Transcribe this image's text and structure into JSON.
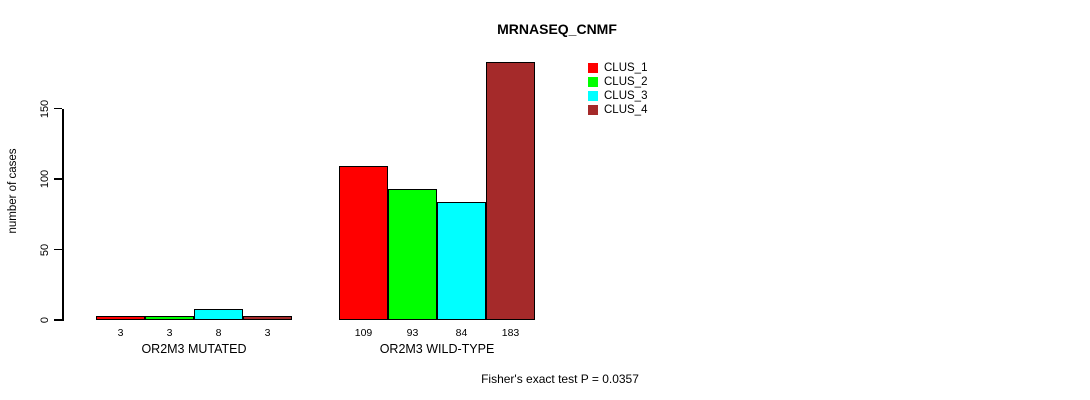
{
  "title": "MRNASEQ_CNMF",
  "chart_data": {
    "type": "bar",
    "categories": [
      "OR2M3 MUTATED",
      "OR2M3 WILD-TYPE"
    ],
    "series": [
      {
        "name": "CLUS_1",
        "color": "#FF0000",
        "values": [
          3,
          109
        ]
      },
      {
        "name": "CLUS_2",
        "color": "#00FF00",
        "values": [
          3,
          93
        ]
      },
      {
        "name": "CLUS_3",
        "color": "#00FFFF",
        "values": [
          8,
          84
        ]
      },
      {
        "name": "CLUS_4",
        "color": "#A52A2A",
        "values": [
          3,
          183
        ]
      }
    ],
    "title": "MRNASEQ_CNMF",
    "xlabel": "",
    "ylabel": "number of cases",
    "yticks": [
      0,
      50,
      100,
      150
    ],
    "ylim": [
      0,
      183
    ],
    "axis_max_tick": 150,
    "bar_value_labels": [
      [
        "3",
        "3",
        "8",
        "3"
      ],
      [
        "109",
        "93",
        "84",
        "183"
      ]
    ],
    "legend_position": "top-right",
    "grid": false,
    "annotation": "Fisher's exact test P = 0.0357"
  },
  "footer": {
    "note": "Fisher's exact test P = 0.0357"
  },
  "colors": {
    "background": "#FFFFFF",
    "axis": "#000000",
    "bar_border": "#000000",
    "clus_1": "#FF0000",
    "clus_2": "#00FF00",
    "clus_3": "#00FFFF",
    "clus_4": "#A52A2A"
  }
}
